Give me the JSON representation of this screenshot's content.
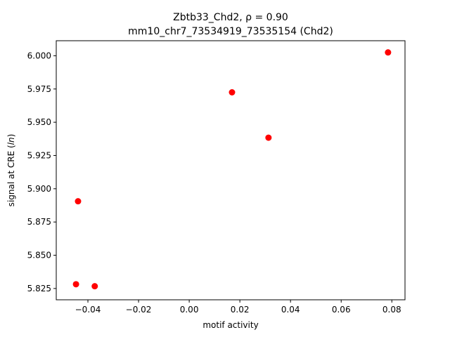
{
  "chart_data": {
    "type": "scatter",
    "title_line1": "Zbtb33_Chd2, ρ = 0.90",
    "title_line2": "mm10_chr7_73534919_73535154 (Chd2)",
    "xlabel": "motif activity",
    "ylabel": "signal at CRE (ln)",
    "xlim": [
      -0.0525,
      0.0852
    ],
    "ylim": [
      5.8165,
      6.0113
    ],
    "x_ticks": [
      -0.04,
      -0.02,
      0.0,
      0.02,
      0.04,
      0.06,
      0.08
    ],
    "x_tick_labels": [
      "−0.04",
      "−0.02",
      "0.00",
      "0.02",
      "0.04",
      "0.06",
      "0.08"
    ],
    "y_ticks": [
      5.825,
      5.85,
      5.875,
      5.9,
      5.925,
      5.95,
      5.975,
      6.0
    ],
    "y_tick_labels": [
      "5.825",
      "5.850",
      "5.875",
      "5.900",
      "5.925",
      "5.950",
      "5.975",
      "6.000"
    ],
    "marker_color": "#ff0000",
    "points": [
      {
        "x": -0.0447,
        "y": 5.8282
      },
      {
        "x": -0.0439,
        "y": 5.8906
      },
      {
        "x": -0.0373,
        "y": 5.8267
      },
      {
        "x": 0.0169,
        "y": 5.9725
      },
      {
        "x": 0.0313,
        "y": 5.9384
      },
      {
        "x": 0.0785,
        "y": 6.0025
      }
    ]
  }
}
